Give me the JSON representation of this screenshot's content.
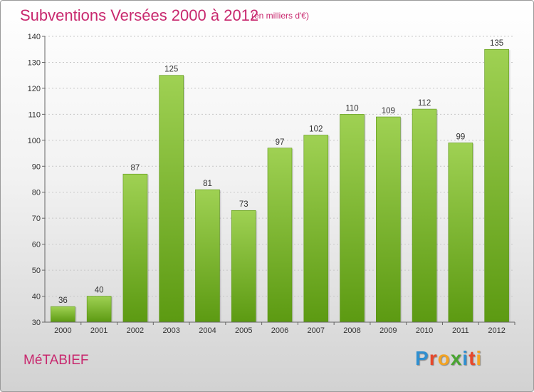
{
  "header": {
    "title": "Subventions Versées 2000 à 2012",
    "unit_note": "(en milliers d'€)"
  },
  "footer": {
    "commune": "MéTABIEF",
    "logo_letters": [
      {
        "ch": "P",
        "color": "#2f8fd0"
      },
      {
        "ch": "r",
        "color": "#e7482b"
      },
      {
        "ch": "o",
        "color": "#f3a322"
      },
      {
        "ch": "x",
        "color": "#4aa532"
      },
      {
        "ch": "i",
        "color": "#2f8fd0"
      },
      {
        "ch": "t",
        "color": "#e7482b"
      },
      {
        "ch": "i",
        "color": "#f3a322"
      }
    ]
  },
  "colors": {
    "accent": "#c8286e",
    "bar_light": "#9fd153",
    "bar_dark": "#5c9a12"
  },
  "chart_data": {
    "type": "bar",
    "title": "Subventions Versées 2000 à 2012",
    "categories": [
      "2000",
      "2001",
      "2002",
      "2003",
      "2004",
      "2005",
      "2006",
      "2007",
      "2008",
      "2009",
      "2010",
      "2011",
      "2012"
    ],
    "values": [
      36,
      40,
      87,
      125,
      81,
      73,
      97,
      102,
      110,
      109,
      112,
      99,
      135
    ],
    "ylim": [
      30,
      140
    ],
    "yticks": [
      30,
      40,
      50,
      60,
      70,
      80,
      90,
      100,
      110,
      120,
      130,
      140
    ],
    "grid": true,
    "legend": "none"
  }
}
